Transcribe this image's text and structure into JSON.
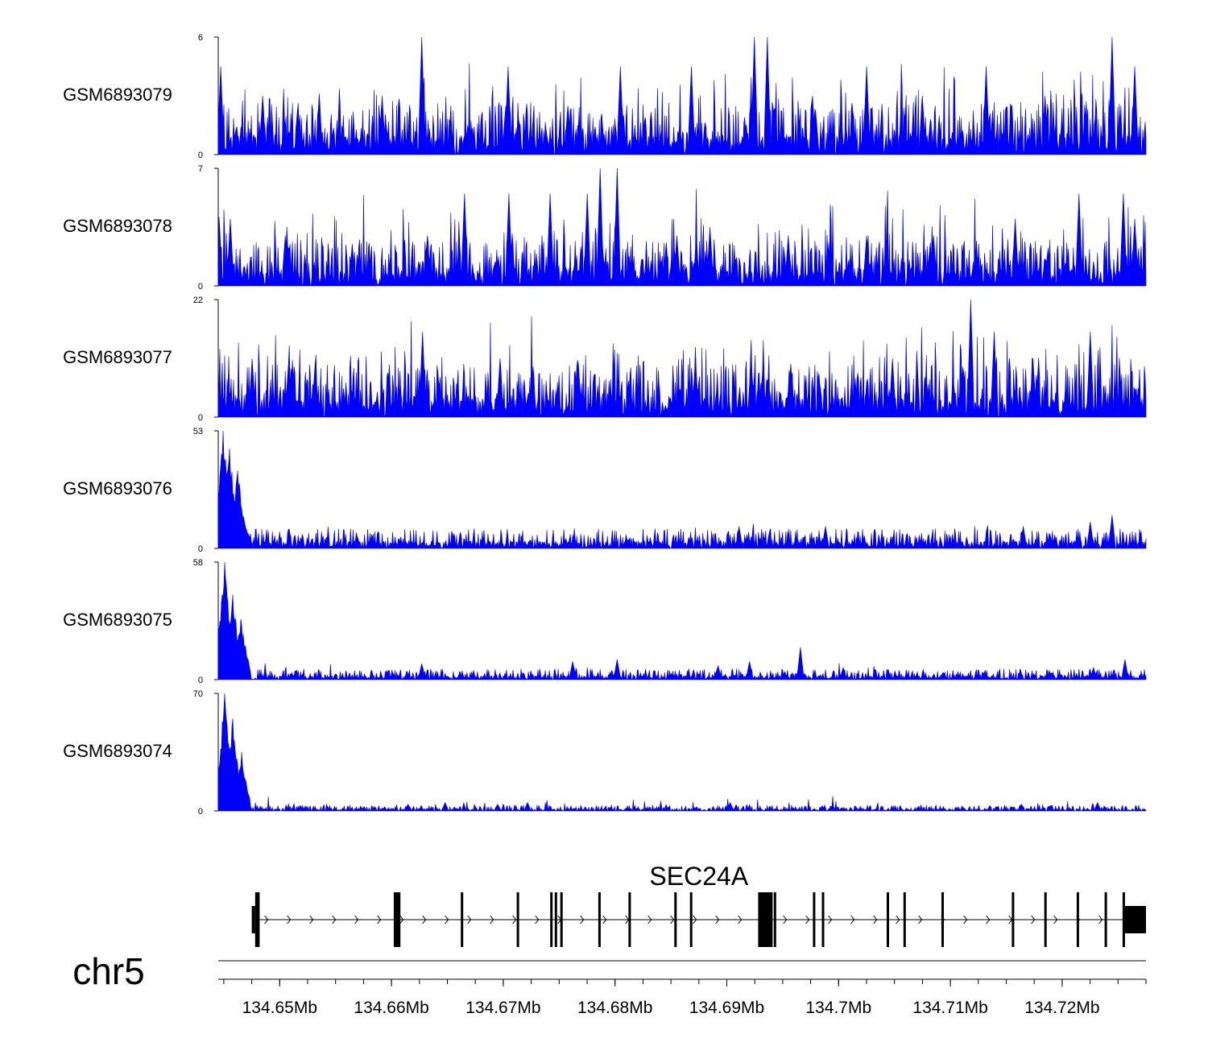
{
  "chart_data": {
    "type": "area",
    "chromosome": "chr5",
    "xlim": [
      134.6445,
      134.7275
    ],
    "x_unit": "Mb",
    "x_ticks": [
      134.65,
      134.66,
      134.67,
      134.68,
      134.69,
      134.7,
      134.71,
      134.72
    ],
    "x_tick_labels": [
      "134.65Mb",
      "134.66Mb",
      "134.67Mb",
      "134.68Mb",
      "134.69Mb",
      "134.7Mb",
      "134.71Mb",
      "134.72Mb"
    ],
    "colors": {
      "signal": "#0000ff",
      "gene": "#000000"
    },
    "tracks": [
      {
        "name": "GSM6893079",
        "ylim": [
          0,
          6
        ],
        "y_tick_labels": [
          "0",
          "6"
        ],
        "peaks": [
          [
            134.6447,
            4.5
          ],
          [
            134.6485,
            3.0
          ],
          [
            134.6535,
            3.0
          ],
          [
            134.6592,
            3.0
          ],
          [
            134.6627,
            6.0
          ],
          [
            134.6668,
            1.5
          ],
          [
            134.6704,
            4.5
          ],
          [
            134.6758,
            2.5
          ],
          [
            134.6805,
            4.5
          ],
          [
            134.6868,
            4.5
          ],
          [
            134.6925,
            6.0
          ],
          [
            134.6936,
            6.0
          ],
          [
            134.6977,
            3.0
          ],
          [
            134.7025,
            4.5
          ],
          [
            134.7075,
            3.0
          ],
          [
            134.7132,
            4.5
          ],
          [
            134.7185,
            3.0
          ],
          [
            134.7245,
            6.0
          ],
          [
            134.7265,
            4.5
          ]
        ],
        "baseline": [
          0,
          1.5
        ]
      },
      {
        "name": "GSM6893078",
        "ylim": [
          0,
          7
        ],
        "y_tick_labels": [
          "0",
          "7"
        ],
        "peaks": [
          [
            134.6456,
            4.0
          ],
          [
            134.6505,
            3.0
          ],
          [
            134.6565,
            2.5
          ],
          [
            134.6632,
            3.0
          ],
          [
            134.6665,
            5.5
          ],
          [
            134.6705,
            5.5
          ],
          [
            134.6742,
            5.5
          ],
          [
            134.6775,
            5.5
          ],
          [
            134.6787,
            7.0
          ],
          [
            134.6802,
            7.0
          ],
          [
            134.6855,
            3.0
          ],
          [
            134.6885,
            3.5
          ],
          [
            134.6955,
            3.0
          ],
          [
            134.7025,
            3.0
          ],
          [
            134.7085,
            3.0
          ],
          [
            134.7158,
            4.0
          ],
          [
            134.7215,
            5.5
          ],
          [
            134.7255,
            5.5
          ],
          [
            134.7265,
            4.0
          ]
        ],
        "baseline": [
          0,
          1.5
        ]
      },
      {
        "name": "GSM6893077",
        "ylim": [
          0,
          22
        ],
        "y_tick_labels": [
          "0",
          "22"
        ],
        "peaks": [
          [
            134.6475,
            11.0
          ],
          [
            134.6508,
            10.0
          ],
          [
            134.6532,
            10.0
          ],
          [
            134.6628,
            16.0
          ],
          [
            134.6697,
            11.0
          ],
          [
            134.6767,
            10.0
          ],
          [
            134.6872,
            11.0
          ],
          [
            134.6922,
            11.0
          ],
          [
            134.6957,
            10.0
          ],
          [
            134.7048,
            11.0
          ],
          [
            134.7118,
            22.0
          ],
          [
            134.7139,
            16.0
          ],
          [
            134.7174,
            11.0
          ],
          [
            134.7225,
            16.0
          ]
        ],
        "baseline": [
          0,
          5.5
        ]
      },
      {
        "name": "GSM6893076",
        "ylim": [
          0,
          53
        ],
        "y_tick_labels": [
          "0",
          "53"
        ],
        "peaks": [
          [
            134.6449,
            53.0
          ],
          [
            134.6455,
            45.0
          ],
          [
            134.6462,
            35.0
          ],
          [
            134.6468,
            12.0
          ],
          [
            134.6911,
            10.0
          ],
          [
            134.6988,
            10.0
          ],
          [
            134.7165,
            10.0
          ],
          [
            134.7225,
            12.0
          ],
          [
            134.7245,
            15.0
          ]
        ],
        "baseline": [
          0,
          5.0
        ]
      },
      {
        "name": "GSM6893075",
        "ylim": [
          0,
          58
        ],
        "y_tick_labels": [
          "0",
          "58"
        ],
        "peaks": [
          [
            134.6443,
            40.0
          ],
          [
            134.6451,
            58.0
          ],
          [
            134.6458,
            42.0
          ],
          [
            134.6465,
            30.0
          ],
          [
            134.6472,
            10.0
          ],
          [
            134.6627,
            8.0
          ],
          [
            134.6762,
            9.0
          ],
          [
            134.6802,
            10.0
          ],
          [
            134.6892,
            7.0
          ],
          [
            134.692,
            9.0
          ],
          [
            134.6966,
            16.0
          ],
          [
            134.7004,
            6.0
          ],
          [
            134.7228,
            6.0
          ],
          [
            134.7256,
            10.0
          ]
        ],
        "baseline": [
          0,
          3.0
        ]
      },
      {
        "name": "GSM6893074",
        "ylim": [
          0,
          70
        ],
        "y_tick_labels": [
          "0",
          "70"
        ],
        "peaks": [
          [
            134.6441,
            35.0
          ],
          [
            134.6451,
            70.0
          ],
          [
            134.6458,
            55.0
          ],
          [
            134.6466,
            35.0
          ],
          [
            134.6472,
            8.0
          ],
          [
            134.6615,
            4.0
          ],
          [
            134.6648,
            5.0
          ],
          [
            134.6695,
            4.0
          ],
          [
            134.6722,
            5.0
          ],
          [
            134.6903,
            5.0
          ],
          [
            134.6985,
            3.0
          ],
          [
            134.7164,
            4.0
          ],
          [
            134.7232,
            5.0
          ]
        ],
        "baseline": [
          0,
          2.0
        ]
      }
    ],
    "gene": {
      "name": "SEC24A",
      "start": 134.6475,
      "end": 134.7275,
      "strand": "+",
      "exons": [
        [
          134.6475,
          134.6478,
          "utr"
        ],
        [
          134.6478,
          134.6482,
          "cds"
        ],
        [
          134.6602,
          134.6608,
          "cds"
        ],
        [
          134.6662,
          134.6664,
          "cds"
        ],
        [
          134.6712,
          134.6714,
          "cds"
        ],
        [
          134.6742,
          134.6744,
          "cds"
        ],
        [
          134.6746,
          134.6748,
          "cds"
        ],
        [
          134.6751,
          134.6753,
          "cds"
        ],
        [
          134.6785,
          134.6787,
          "cds"
        ],
        [
          134.6812,
          134.6814,
          "cds"
        ],
        [
          134.6853,
          134.6855,
          "cds"
        ],
        [
          134.6867,
          134.6869,
          "cds"
        ],
        [
          134.6928,
          134.6931,
          "cds"
        ],
        [
          134.6931,
          134.6941,
          "cds"
        ],
        [
          134.6942,
          134.6944,
          "cds"
        ],
        [
          134.6977,
          134.6979,
          "cds"
        ],
        [
          134.6985,
          134.6987,
          "cds"
        ],
        [
          134.7043,
          134.7045,
          "cds"
        ],
        [
          134.7058,
          134.706,
          "cds"
        ],
        [
          134.7092,
          134.7094,
          "cds"
        ],
        [
          134.7155,
          134.7157,
          "cds"
        ],
        [
          134.7184,
          134.7186,
          "cds"
        ],
        [
          134.7213,
          134.7215,
          "cds"
        ],
        [
          134.7238,
          134.724,
          "cds"
        ],
        [
          134.7254,
          134.7256,
          "cds"
        ],
        [
          134.7256,
          134.7275,
          "utr"
        ]
      ]
    }
  }
}
